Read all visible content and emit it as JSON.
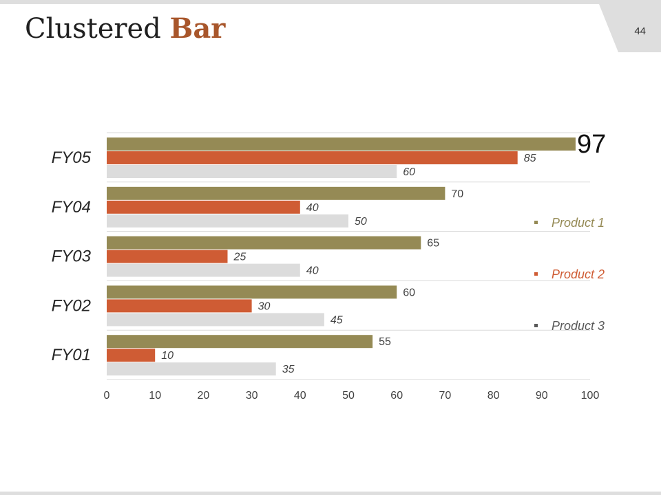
{
  "slide": {
    "title_main": "Clustered Bar",
    "title_plain": "Clustered ",
    "title_accent": "Bar",
    "page_number": "44"
  },
  "colors": {
    "product1": "#958a55",
    "product2": "#cf5c34",
    "product3": "#dcdcdc",
    "legend_text1": "#958a55",
    "legend_text2": "#cf5c34",
    "legend_text3": "#595959",
    "label_dark": "#404040",
    "grid": "#d9d9d9",
    "title_accent": "#a8562b"
  },
  "chart_data": {
    "type": "bar",
    "orientation": "horizontal",
    "categories": [
      "FY05",
      "FY04",
      "FY03",
      "FY02",
      "FY01"
    ],
    "series": [
      {
        "name": "Product 1",
        "values": [
          97,
          70,
          65,
          60,
          55
        ]
      },
      {
        "name": "Product 2",
        "values": [
          85,
          40,
          25,
          30,
          10
        ]
      },
      {
        "name": "Product 3",
        "values": [
          60,
          50,
          40,
          45,
          35
        ]
      }
    ],
    "xlim": [
      0,
      100
    ],
    "xticks": [
      "0",
      "10",
      "20",
      "30",
      "40",
      "50",
      "60",
      "70",
      "80",
      "90",
      "100"
    ],
    "xlabel": "",
    "ylabel": "",
    "grid": true,
    "legend_position": "right",
    "highlight": {
      "category": "FY05",
      "series": "Product 1",
      "label": "97"
    }
  }
}
